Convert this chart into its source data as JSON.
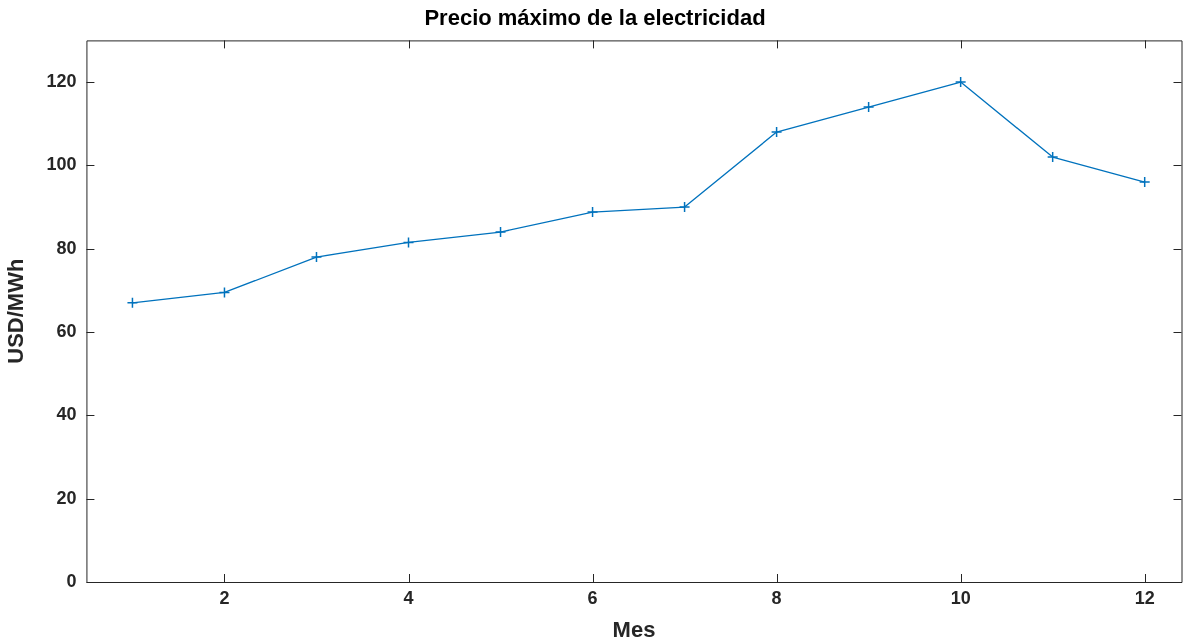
{
  "chart_data": {
    "type": "line",
    "title": "Precio máximo de la electricidad",
    "xlabel": "Mes",
    "ylabel": "USD/MWh",
    "x": [
      1,
      2,
      3,
      4,
      5,
      6,
      7,
      8,
      9,
      10,
      11,
      12
    ],
    "series": [
      {
        "color": "#0072bd",
        "values": [
          67,
          69.5,
          78,
          81.5,
          84,
          88.8,
          90,
          108,
          114,
          120,
          102,
          96
        ]
      }
    ],
    "xlim": [
      0.5,
      12.4
    ],
    "xticks": [
      2,
      4,
      6,
      8,
      10,
      12
    ],
    "ylim": [
      0,
      130
    ],
    "yticks": [
      0,
      20,
      40,
      60,
      80,
      100,
      120
    ],
    "grid": false,
    "legend": false,
    "marker": "cross",
    "line_style": "solid"
  }
}
